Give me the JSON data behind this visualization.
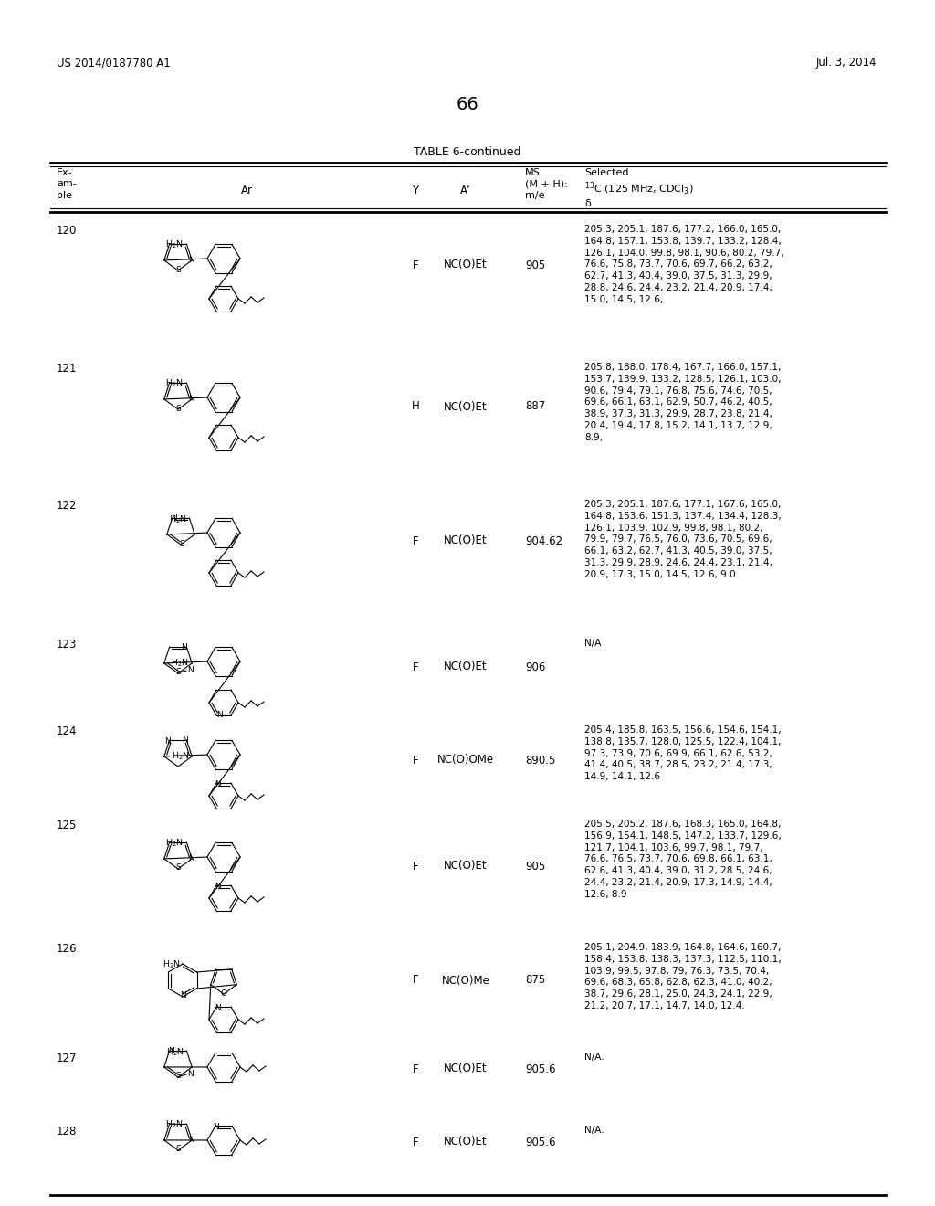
{
  "patent_number": "US 2014/0187780 A1",
  "date": "Jul. 3, 2014",
  "page_number": "66",
  "table_title": "TABLE 6-continued",
  "rows": [
    {
      "example": "120",
      "y": "F",
      "a_prime": "NC(O)Et",
      "ms": "905",
      "nmr": "205.3, 205.1, 187.6, 177.2, 166.0, 165.0,\n164.8, 157.1, 153.8, 139.7, 133.2, 128.4,\n126.1, 104.0, 99.8, 98.1, 90.6, 80.2, 79.7,\n76.6, 75.8, 73.7, 70.6, 69.7, 66.2, 63.2,\n62.7, 41.3, 40.4, 39.0, 37.5, 31.3, 29.9,\n28.8, 24.6, 24.4, 23.2, 21.4, 20.9, 17.4,\n15.0, 14.5, 12.6,"
    },
    {
      "example": "121",
      "y": "H",
      "a_prime": "NC(O)Et",
      "ms": "887",
      "nmr": "205.8, 188.0, 178.4, 167.7, 166.0, 157.1,\n153.7, 139.9, 133.2, 128.5, 126.1, 103.0,\n90.6, 79.4, 79.1, 76.8, 75.6, 74.6, 70.5,\n69.6, 66.1, 63.1, 62.9, 50.7, 46.2, 40.5,\n38.9, 37.3, 31.3, 29.9, 28.7, 23.8, 21.4,\n20.4, 19.4, 17.8, 15.2, 14.1, 13.7, 12.9,\n8.9,"
    },
    {
      "example": "122",
      "y": "F",
      "a_prime": "NC(O)Et",
      "ms": "904.62",
      "nmr": "205.3, 205.1, 187.6, 177.1, 167.6, 165.0,\n164.8, 153.6, 151.3, 137.4, 134.4, 128.3,\n126.1, 103.9, 102.9, 99.8, 98.1, 80.2,\n79.9, 79.7, 76.5, 76.0, 73.6, 70.5, 69.6,\n66.1, 63.2, 62.7, 41.3, 40.5, 39.0, 37.5,\n31.3, 29.9, 28.9, 24.6, 24.4, 23.1, 21.4,\n20.9, 17.3, 15.0, 14.5, 12.6, 9.0."
    },
    {
      "example": "123",
      "y": "F",
      "a_prime": "NC(O)Et",
      "ms": "906",
      "nmr": "N/A"
    },
    {
      "example": "124",
      "y": "F",
      "a_prime": "NC(O)OMe",
      "ms": "890.5",
      "nmr": "205.4, 185.8, 163.5, 156.6, 154.6, 154.1,\n138.8, 135.7, 128.0, 125.5, 122.4, 104.1,\n97.3, 73.9, 70.6, 69.9, 66.1, 62.6, 53.2,\n41.4, 40.5, 38.7, 28.5, 23.2, 21.4, 17.3,\n14.9, 14.1, 12.6"
    },
    {
      "example": "125",
      "y": "F",
      "a_prime": "NC(O)Et",
      "ms": "905",
      "nmr": "205.5, 205.2, 187.6, 168.3, 165.0, 164.8,\n156.9, 154.1, 148.5, 147.2, 133.7, 129.6,\n121.7, 104.1, 103.6, 99.7, 98.1, 79.7,\n76.6, 76.5, 73.7, 70.6, 69.8, 66.1, 63.1,\n62.6, 41.3, 40.4, 39.0, 31.2, 28.5, 24.6,\n24.4, 23.2, 21.4, 20.9, 17.3, 14.9, 14.4,\n12.6, 8.9"
    },
    {
      "example": "126",
      "y": "F",
      "a_prime": "NC(O)Me",
      "ms": "875",
      "nmr": "205.1, 204.9, 183.9, 164.8, 164.6, 160.7,\n158.4, 153.8, 138.3, 137.3, 112.5, 110.1,\n103.9, 99.5, 97.8, 79, 76.3, 73.5, 70.4,\n69.6, 68.3, 65.8, 62.8, 62.3, 41.0, 40.2,\n38.7, 29.6, 28.1, 25.0, 24.3, 24.1, 22.9,\n21.2, 20.7, 17.1, 14.7, 14.0, 12.4."
    },
    {
      "example": "127",
      "y": "F",
      "a_prime": "NC(O)Et",
      "ms": "905.6",
      "nmr": "N/A."
    },
    {
      "example": "128",
      "y": "F",
      "a_prime": "NC(O)Et",
      "ms": "905.6",
      "nmr": "N/A."
    }
  ],
  "background_color": "#ffffff"
}
